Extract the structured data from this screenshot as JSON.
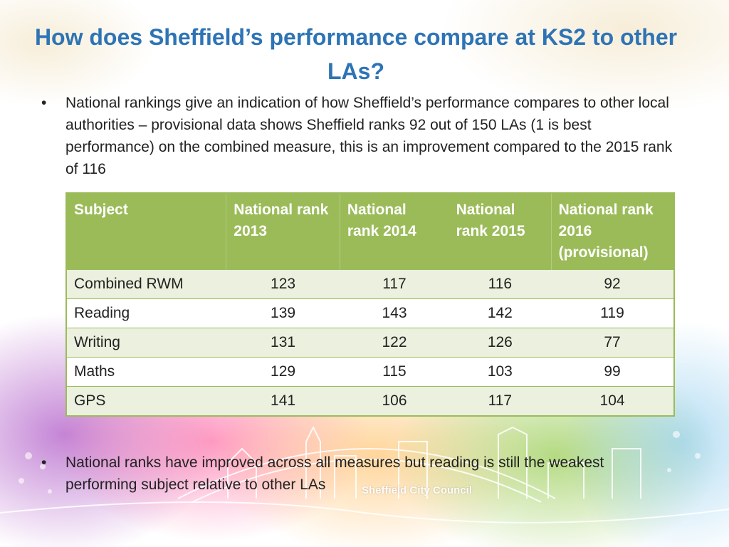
{
  "title": "How does Sheffield’s performance compare at KS2 to other LAs?",
  "bullets": [
    "National rankings give an indication of how Sheffield’s performance compares to other local authorities – provisional data shows Sheffield ranks 92 out of  150 LAs (1 is best performance) on the combined measure, this is an improvement compared to the 2015 rank of 116",
    "National ranks have improved across all measures but reading is still the weakest performing subject relative to other LAs"
  ],
  "bullet_glyph": "•",
  "table": {
    "headers": [
      "Subject",
      "National rank 2013",
      "National rank 2014",
      "National rank 2015",
      "National rank 2016 (provisional)"
    ],
    "rows": [
      [
        "Combined RWM",
        "123",
        "117",
        "116",
        "92"
      ],
      [
        "Reading",
        "139",
        "143",
        "142",
        "119"
      ],
      [
        "Writing",
        "131",
        "122",
        "126",
        "77"
      ],
      [
        "Maths",
        "129",
        "115",
        "103",
        "99"
      ],
      [
        "GPS",
        "141",
        "106",
        "117",
        "104"
      ]
    ]
  },
  "logo_text": "Sheffield City Council",
  "colors": {
    "title": "#2e74b5",
    "header_bg": "#9bbb59",
    "row_alt": "#ebf1de"
  }
}
